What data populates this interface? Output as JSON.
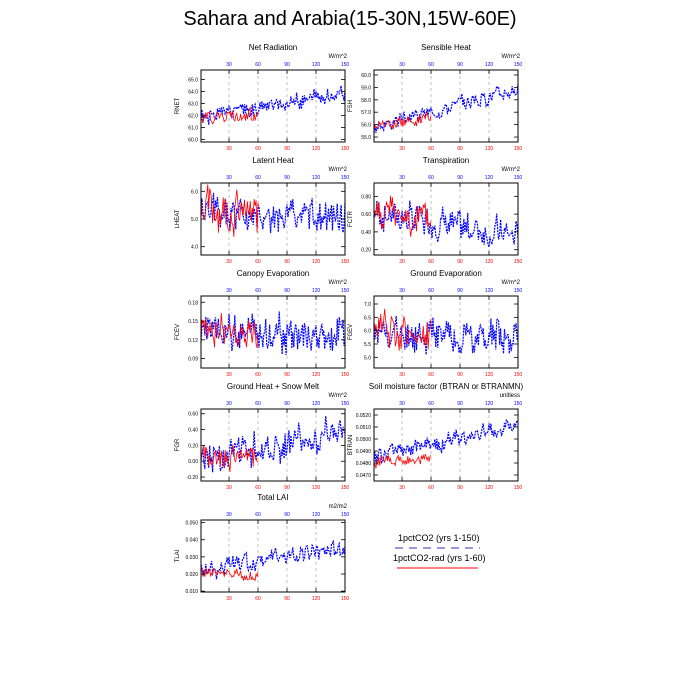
{
  "page_title": "Sahara and Arabia(15-30N,15W-60E)",
  "legend": [
    {
      "label": "1pctCO2 (yrs 1-150)",
      "color": "#0000ff",
      "style": "dashed"
    },
    {
      "label": "1pctCO2-rad (yrs 1-60)",
      "color": "#ff0000",
      "style": "solid"
    }
  ],
  "chart_data": [
    {
      "type": "line",
      "title": "Net Radiation",
      "unit_label": "W/m^2",
      "ylabel": "RNET",
      "xlim": [
        1,
        150
      ],
      "ylim": [
        59.8,
        65.8
      ],
      "yticks": [
        60.0,
        61.0,
        62.0,
        63.0,
        64.0,
        65.0
      ],
      "ytick_labels": [
        "60.0",
        "61.0",
        "62.0",
        "63.0",
        "64.0",
        "65.0"
      ],
      "xticks": [
        30,
        60,
        90,
        120,
        150
      ],
      "series": [
        {
          "name": "1pctCO2",
          "color": "#0000ff",
          "start": 61.8,
          "end": 63.9,
          "amp": 0.9,
          "n": 150,
          "seed": 1
        },
        {
          "name": "1pctCO2-rad",
          "color": "#ff0000",
          "start": 61.9,
          "end": 62.1,
          "amp": 0.8,
          "n": 60,
          "seed": 2
        }
      ]
    },
    {
      "type": "line",
      "title": "Sensible Heat",
      "unit_label": "W/m^2",
      "ylabel": "FSH",
      "xlim": [
        1,
        150
      ],
      "ylim": [
        54.6,
        60.4
      ],
      "yticks": [
        55.0,
        56.0,
        57.0,
        58.0,
        59.0,
        60.0
      ],
      "ytick_labels": [
        "55.0",
        "56.0",
        "57.0",
        "58.0",
        "59.0",
        "60.0"
      ],
      "xticks": [
        30,
        60,
        90,
        120,
        150
      ],
      "series": [
        {
          "name": "1pctCO2",
          "color": "#0000ff",
          "start": 55.8,
          "end": 58.9,
          "amp": 0.8,
          "n": 150,
          "seed": 3
        },
        {
          "name": "1pctCO2-rad",
          "color": "#ff0000",
          "start": 55.9,
          "end": 56.6,
          "amp": 0.6,
          "n": 60,
          "seed": 4
        }
      ]
    },
    {
      "type": "line",
      "title": "Latent Heat",
      "unit_label": "W/m^2",
      "ylabel": "LHEAT",
      "xlim": [
        1,
        150
      ],
      "ylim": [
        3.7,
        6.3
      ],
      "yticks": [
        4.0,
        5.0,
        6.0
      ],
      "ytick_labels": [
        "4.0",
        "5.0",
        "6.0"
      ],
      "xticks": [
        30,
        60,
        90,
        120,
        150
      ],
      "series": [
        {
          "name": "1pctCO2",
          "color": "#0000ff",
          "start": 5.2,
          "end": 5.0,
          "amp": 0.8,
          "n": 150,
          "seed": 5
        },
        {
          "name": "1pctCO2-rad",
          "color": "#ff0000",
          "start": 5.5,
          "end": 5.1,
          "amp": 1.0,
          "n": 60,
          "seed": 6
        }
      ]
    },
    {
      "type": "line",
      "title": "Transpiration",
      "unit_label": "W/m^2",
      "ylabel": "FCTR",
      "xlim": [
        1,
        150
      ],
      "ylim": [
        0.14,
        0.95
      ],
      "yticks": [
        0.2,
        0.4,
        0.6,
        0.8
      ],
      "ytick_labels": [
        "0.20",
        "0.40",
        "0.60",
        "0.80"
      ],
      "xticks": [
        30,
        60,
        90,
        120,
        150
      ],
      "series": [
        {
          "name": "1pctCO2",
          "color": "#0000ff",
          "start": 0.62,
          "end": 0.34,
          "amp": 0.24,
          "n": 150,
          "seed": 7
        },
        {
          "name": "1pctCO2-rad",
          "color": "#ff0000",
          "start": 0.64,
          "end": 0.52,
          "amp": 0.25,
          "n": 60,
          "seed": 8
        }
      ]
    },
    {
      "type": "line",
      "title": "Canopy Evaporation",
      "unit_label": "W/m^2",
      "ylabel": "FCEV",
      "xlim": [
        1,
        150
      ],
      "ylim": [
        0.075,
        0.19
      ],
      "yticks": [
        0.09,
        0.12,
        0.15,
        0.18
      ],
      "ytick_labels": [
        "0.09",
        "0.12",
        "0.15",
        "0.18"
      ],
      "xticks": [
        30,
        60,
        90,
        120,
        150
      ],
      "series": [
        {
          "name": "1pctCO2",
          "color": "#0000ff",
          "start": 0.135,
          "end": 0.125,
          "amp": 0.04,
          "n": 150,
          "seed": 9
        },
        {
          "name": "1pctCO2-rad",
          "color": "#ff0000",
          "start": 0.14,
          "end": 0.125,
          "amp": 0.035,
          "n": 60,
          "seed": 10
        }
      ]
    },
    {
      "type": "line",
      "title": "Ground Evaporation",
      "unit_label": "W/m^2",
      "ylabel": "FGEV",
      "xlim": [
        1,
        150
      ],
      "ylim": [
        4.6,
        7.3
      ],
      "yticks": [
        5.0,
        5.5,
        6.0,
        6.5,
        7.0
      ],
      "ytick_labels": [
        "5.0",
        "5.5",
        "6.0",
        "6.5",
        "7.0"
      ],
      "xticks": [
        30,
        60,
        90,
        120,
        150
      ],
      "series": [
        {
          "name": "1pctCO2",
          "color": "#0000ff",
          "start": 5.9,
          "end": 5.8,
          "amp": 0.9,
          "n": 150,
          "seed": 11
        },
        {
          "name": "1pctCO2-rad",
          "color": "#ff0000",
          "start": 6.1,
          "end": 5.8,
          "amp": 0.9,
          "n": 60,
          "seed": 12
        }
      ]
    },
    {
      "type": "line",
      "title": "Ground Heat + Snow Melt",
      "unit_label": "W/m^2",
      "ylabel": "FGR",
      "xlim": [
        1,
        150
      ],
      "ylim": [
        -0.25,
        0.66
      ],
      "yticks": [
        -0.2,
        0.0,
        0.2,
        0.4,
        0.6
      ],
      "ytick_labels": [
        "-0.20",
        "0.00",
        "0.20",
        "0.40",
        "0.60"
      ],
      "xticks": [
        30,
        60,
        90,
        120,
        150
      ],
      "series": [
        {
          "name": "1pctCO2",
          "color": "#0000ff",
          "start": 0.05,
          "end": 0.35,
          "amp": 0.28,
          "n": 150,
          "seed": 13
        },
        {
          "name": "1pctCO2-rad",
          "color": "#ff0000",
          "start": 0.05,
          "end": 0.06,
          "amp": 0.2,
          "n": 60,
          "seed": 14
        }
      ]
    },
    {
      "type": "line",
      "title": "Soil moisture factor (BTRAN or BTRANMN)",
      "unit_label": "unitless",
      "ylabel": "BTRAN",
      "xlim": [
        1,
        150
      ],
      "ylim": [
        0.0465,
        0.0525
      ],
      "yticks": [
        0.047,
        0.048,
        0.049,
        0.05,
        0.051,
        0.052
      ],
      "ytick_labels": [
        "0.0470",
        "0.0480",
        "0.0490",
        "0.0500",
        "0.0510",
        "0.0520"
      ],
      "xticks": [
        30,
        60,
        90,
        120,
        150
      ],
      "series": [
        {
          "name": "1pctCO2",
          "color": "#0000ff",
          "start": 0.0485,
          "end": 0.0512,
          "amp": 0.0009,
          "n": 150,
          "seed": 15
        },
        {
          "name": "1pctCO2-rad",
          "color": "#ff0000",
          "start": 0.0481,
          "end": 0.0484,
          "amp": 0.0006,
          "n": 60,
          "seed": 16
        }
      ]
    },
    {
      "type": "line",
      "title": "Total LAI",
      "unit_label": "m2/m2",
      "ylabel": "TLAI",
      "xlim": [
        1,
        150
      ],
      "ylim": [
        0.0095,
        0.0515
      ],
      "yticks": [
        0.01,
        0.02,
        0.03,
        0.04,
        0.05
      ],
      "ytick_labels": [
        "0.010",
        "0.020",
        "0.030",
        "0.040",
        "0.050"
      ],
      "xticks": [
        30,
        60,
        90,
        120,
        150
      ],
      "series": [
        {
          "name": "1pctCO2",
          "color": "#0000ff",
          "start": 0.022,
          "end": 0.036,
          "amp": 0.007,
          "n": 150,
          "seed": 17
        },
        {
          "name": "1pctCO2-rad",
          "color": "#ff0000",
          "start": 0.021,
          "end": 0.019,
          "amp": 0.004,
          "n": 60,
          "seed": 18
        }
      ]
    }
  ]
}
